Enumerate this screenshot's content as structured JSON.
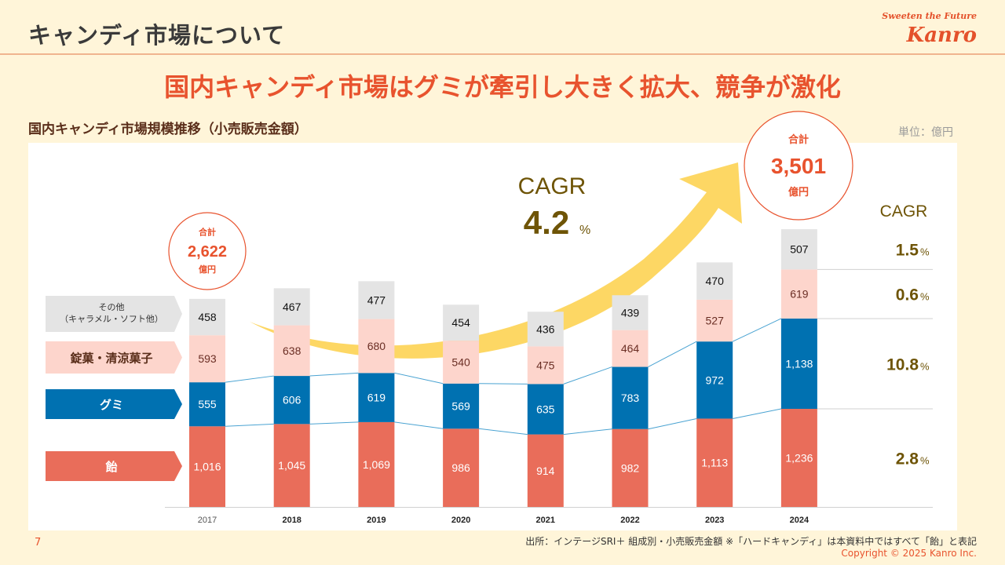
{
  "header": {
    "title": "キャンディ市場について",
    "brand_tagline": "Sweeten the Future",
    "brand_name": "Kanro"
  },
  "headline": "国内キャンディ市場はグミが牽引し大きく拡大、競争が激化",
  "subtitle": "国内キャンディ市場規模推移（小売販売金額）",
  "unit_label": "単位：億円",
  "colors": {
    "ame": "#e96d5a",
    "gummy": "#0071b1",
    "tablet": "#fdd5cc",
    "other": "#e4e4e4",
    "accent": "#e8532e",
    "cagr_text": "#6e5406",
    "arrow": "#fdd764",
    "connector": "#4aa3d2"
  },
  "chart_data": {
    "type": "bar",
    "stacked": true,
    "title": "国内キャンディ市場規模推移（小売販売金額）",
    "xlabel": "",
    "ylabel": "億円",
    "categories": [
      "2017",
      "2018",
      "2019",
      "2020",
      "2021",
      "2022",
      "2023",
      "2024"
    ],
    "series": [
      {
        "key": "ame",
        "name": "飴",
        "values": [
          1016,
          1045,
          1069,
          986,
          914,
          982,
          1113,
          1236
        ],
        "labels": [
          "1,016",
          "1,045",
          "1,069",
          "986",
          "914",
          "982",
          "1,113",
          "1,236"
        ],
        "cagr": "2.8"
      },
      {
        "key": "gummy",
        "name": "グミ",
        "values": [
          555,
          606,
          619,
          569,
          635,
          783,
          972,
          1138
        ],
        "labels": [
          "555",
          "606",
          "619",
          "569",
          "635",
          "783",
          "972",
          "1,138"
        ],
        "cagr": "10.8"
      },
      {
        "key": "tablet",
        "name": "錠菓・清涼菓子",
        "values": [
          593,
          638,
          680,
          540,
          475,
          464,
          527,
          619
        ],
        "labels": [
          "593",
          "638",
          "680",
          "540",
          "475",
          "464",
          "527",
          "619"
        ],
        "cagr": "0.6"
      },
      {
        "key": "other",
        "name": "その他",
        "name_sub": "（キャラメル・ソフト他）",
        "values": [
          458,
          467,
          477,
          454,
          436,
          439,
          470,
          507
        ],
        "labels": [
          "458",
          "467",
          "477",
          "454",
          "436",
          "439",
          "470",
          "507"
        ],
        "cagr": "1.5"
      }
    ],
    "ylim": [
      0,
      3600
    ],
    "grid": false,
    "legend_position": "left",
    "totals": [
      {
        "year": "2017",
        "label": "合計",
        "value": "2,622",
        "unit": "億円"
      },
      {
        "year": "2024",
        "label": "合計",
        "value": "3,501",
        "unit": "億円"
      }
    ],
    "overall_cagr": {
      "label": "CAGR",
      "value": "4.2",
      "suffix": "%"
    },
    "segment_cagr_header": "CAGR",
    "percent_suffix": "%"
  },
  "footer": {
    "page_number": "7",
    "source": "出所：インテージSRI＋ 組成別・小売販売金額 ※「ハードキャンディ」は本資料中ではすべて「飴」と表記",
    "copyright": "Copyright © 2025  Kanro Inc."
  }
}
